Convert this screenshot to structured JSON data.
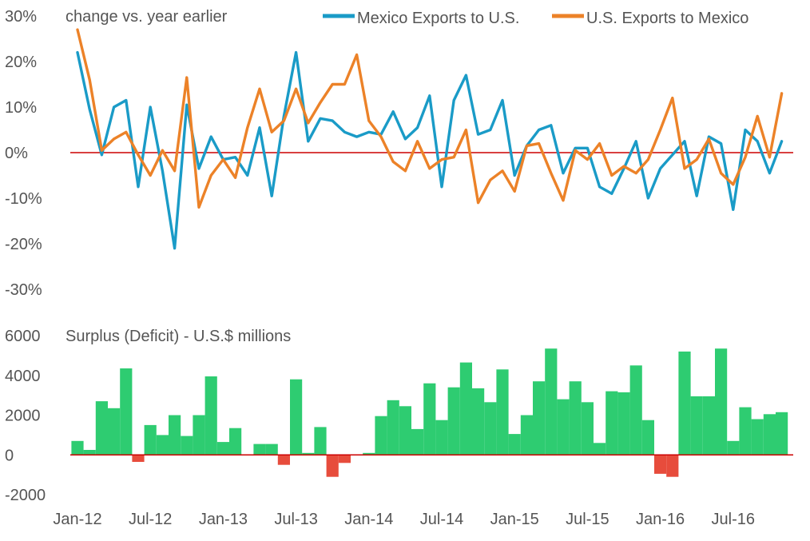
{
  "chart_data": [
    {
      "type": "line",
      "annotation": "change vs. year earlier",
      "x_tick_labels": [
        "Jan-12",
        "Jul-12",
        "Jan-13",
        "Jul-13",
        "Jan-14",
        "Jul-14",
        "Jan-15",
        "Jul-15",
        "Jan-16",
        "Jul-16"
      ],
      "y_tick_labels": [
        "30%",
        "20%",
        "10%",
        "0%",
        "-10%",
        "-20%",
        "-30%"
      ],
      "ylim": [
        -30,
        30
      ],
      "zero_line_color": "#cc0000",
      "series": [
        {
          "name": "Mexico Exports to U.S.",
          "color": "#1a9bc7",
          "values": [
            22,
            9.5,
            -0.5,
            10,
            11.5,
            -7.5,
            10,
            -4,
            -21,
            10.5,
            -3.5,
            3.5,
            -1.5,
            -1,
            -5,
            5.5,
            -9.5,
            8,
            22,
            2.5,
            7.5,
            7,
            4.5,
            3.5,
            4.5,
            4,
            9,
            3,
            5.5,
            12.5,
            -7.5,
            11.5,
            17,
            4,
            5,
            11.5,
            -5,
            1.5,
            5,
            6,
            -4.5,
            1,
            1,
            -7.5,
            -9,
            -3.5,
            2.5,
            -10,
            -3.5,
            -0.5,
            2.5,
            -9.5,
            3.5,
            2,
            -12.5,
            5,
            2.5,
            -4.5,
            2.5
          ]
        },
        {
          "name": "U.S. Exports to Mexico",
          "color": "#ec8228",
          "values": [
            27,
            16,
            0.5,
            3,
            4.5,
            -0.5,
            -5,
            0.5,
            -4,
            16.5,
            -12,
            -5,
            -1.5,
            -5.5,
            5.5,
            14,
            4.5,
            7,
            14,
            6.5,
            11,
            15,
            15,
            21.5,
            7,
            3.5,
            -2,
            -4,
            2.5,
            -3.5,
            -1.5,
            -1,
            5,
            -11,
            -6,
            -4,
            -8.5,
            1.5,
            2,
            -4.5,
            -10.5,
            0.5,
            -1.5,
            2,
            -5,
            -3,
            -4.5,
            -1.5,
            5,
            12,
            -3.5,
            -1.5,
            3,
            -4.5,
            -7,
            -1,
            8,
            -1,
            13
          ]
        }
      ]
    },
    {
      "type": "bar",
      "annotation": "Surplus (Deficit) - U.S.$ millions",
      "y_tick_labels": [
        "6000",
        "4000",
        "2000",
        "0",
        "-2000"
      ],
      "ylim": [
        -2000,
        6000
      ],
      "zero_line_color": "#cc0000",
      "positive_color": "#2ecc71",
      "negative_color": "#e74c3c",
      "values": [
        700,
        250,
        2700,
        2350,
        4350,
        -350,
        1500,
        1000,
        2000,
        950,
        2000,
        3950,
        650,
        1350,
        0,
        550,
        550,
        -500,
        3800,
        100,
        1400,
        -1100,
        -400,
        0,
        100,
        1950,
        2750,
        2450,
        1300,
        3600,
        1750,
        3400,
        4650,
        3350,
        2650,
        4300,
        1050,
        2000,
        3700,
        5350,
        2800,
        3700,
        2650,
        600,
        3200,
        3150,
        4500,
        1750,
        -950,
        -1100,
        5200,
        2950,
        2950,
        5350,
        700,
        2400,
        1800,
        2050,
        2150
      ]
    }
  ]
}
